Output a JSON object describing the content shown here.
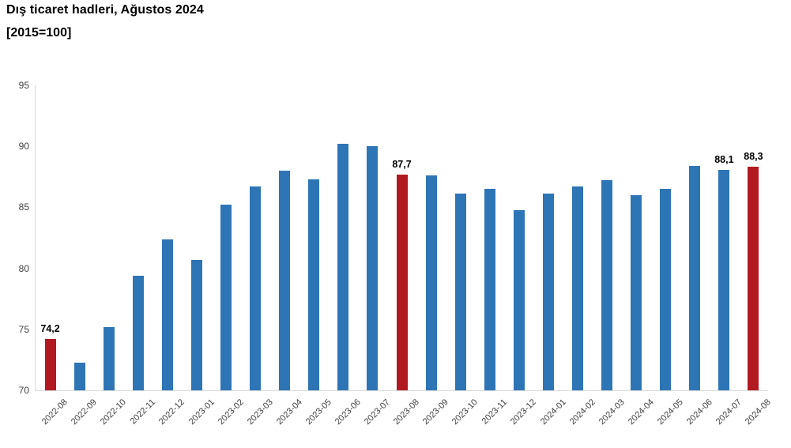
{
  "title": "Dış ticaret hadleri, Ağustos 2024",
  "subtitle": "[2015=100]",
  "colors": {
    "background": "#FFFFFF",
    "bar": "#2E75B6",
    "bar_highlight": "#B11A21",
    "axis_line": "#D9D9D9",
    "tick_text": "#404040",
    "data_label_text": "#000000",
    "title_text": "#000000"
  },
  "chart_data": {
    "type": "bar",
    "title": "Dış ticaret hadleri, Ağustos 2024",
    "subtitle": "[2015=100]",
    "xlabel": "",
    "ylabel": "",
    "categories": [
      "2022-08",
      "2022-09",
      "2022-10",
      "2022-11",
      "2022-12",
      "2023-01",
      "2023-02",
      "2023-03",
      "2023-04",
      "2023-05",
      "2023-06",
      "2023-07",
      "2023-08",
      "2023-09",
      "2023-10",
      "2023-11",
      "2023-12",
      "2024-01",
      "2024-02",
      "2024-03",
      "2024-04",
      "2024-05",
      "2024-06",
      "2024-07",
      "2024-08"
    ],
    "values": [
      74.2,
      72.3,
      75.2,
      79.4,
      82.4,
      80.7,
      85.2,
      86.7,
      88.0,
      87.3,
      90.2,
      90.0,
      87.7,
      87.6,
      86.1,
      86.5,
      84.8,
      86.1,
      86.7,
      87.2,
      86.0,
      86.5,
      88.4,
      88.1,
      88.3
    ],
    "highlighted_categories": [
      "2022-08",
      "2023-08",
      "2024-08"
    ],
    "data_labels": [
      {
        "category": "2022-08",
        "text": "74,2"
      },
      {
        "category": "2023-08",
        "text": "87,7"
      },
      {
        "category": "2024-07",
        "text": "88,1"
      },
      {
        "category": "2024-08",
        "text": "88,3"
      }
    ],
    "ylim": [
      70,
      95
    ],
    "yticks": [
      70,
      75,
      80,
      85,
      90,
      95
    ],
    "grid": false,
    "legend": false
  }
}
